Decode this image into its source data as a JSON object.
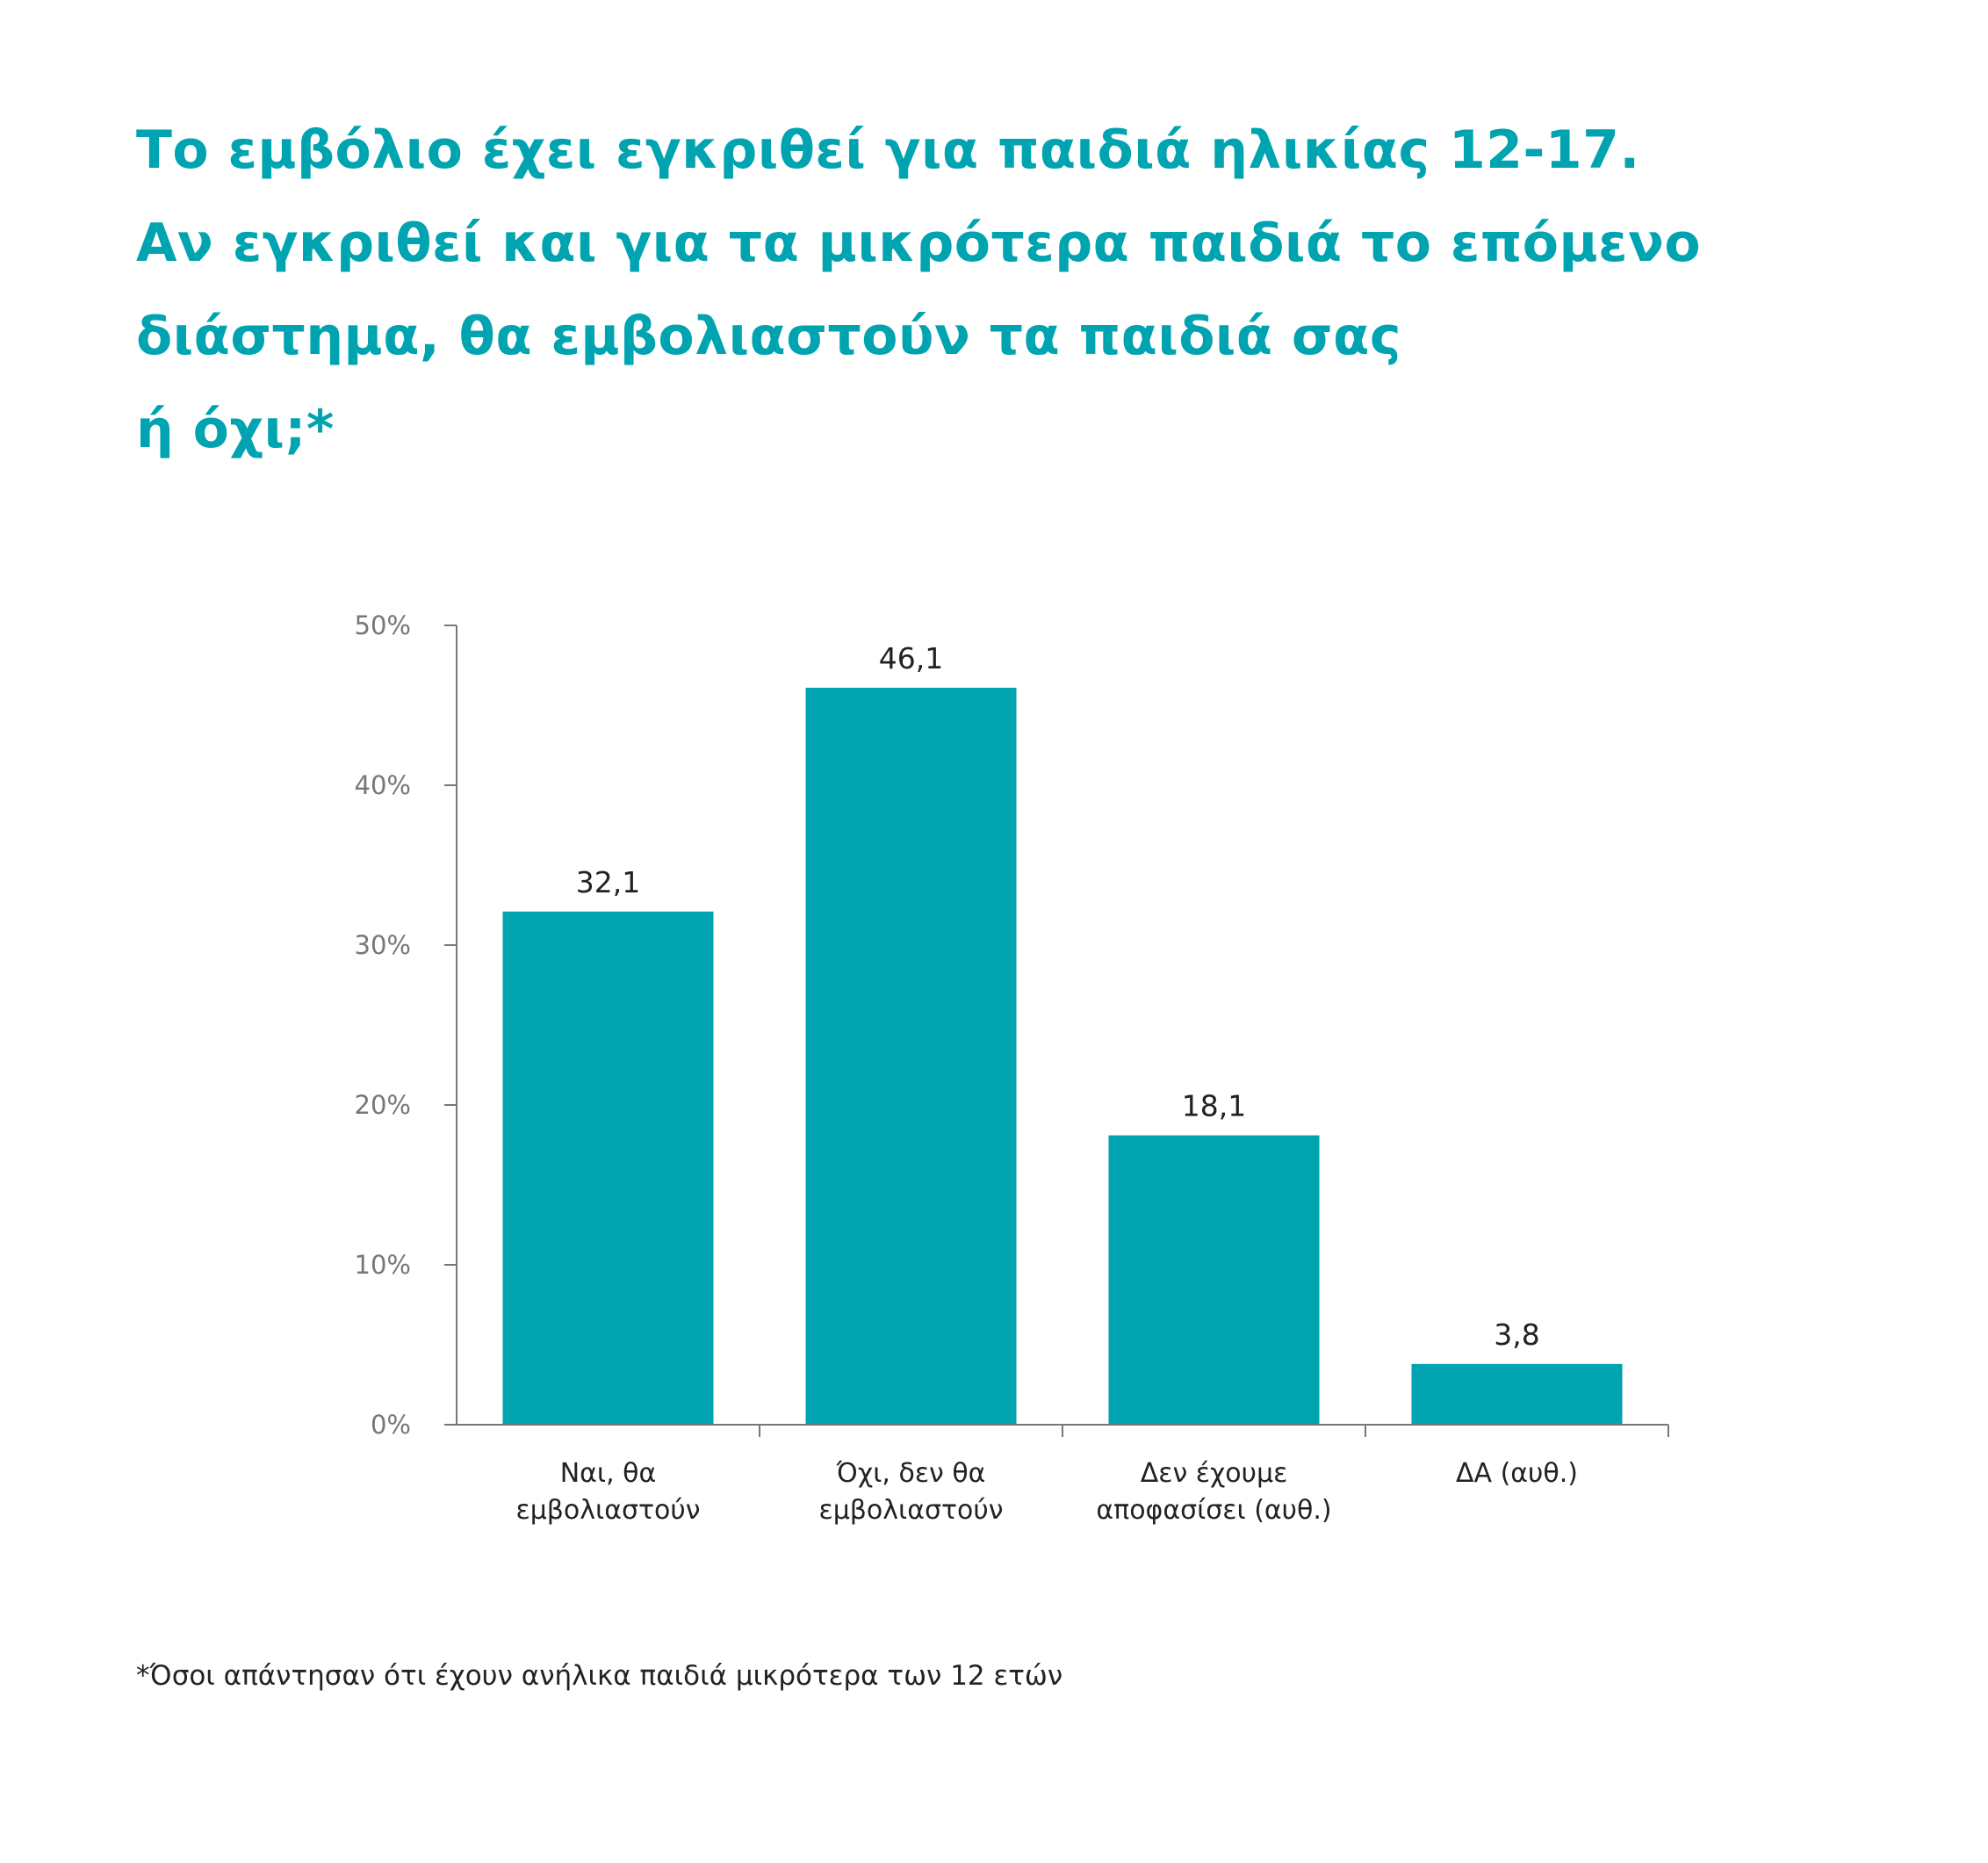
{
  "title_lines": [
    "Το εμβόλιο έχει εγκριθεί για παιδιά ηλικίας 12-17.",
    "Αν εγκριθεί και για τα μικρότερα παιδιά το επόμενο",
    "διάστημα, θα εμβολιαστούν τα παιδιά σας",
    "ή όχι;*"
  ],
  "footnote": "*Όσοι απάντησαν ότι έχουν ανήλικα παιδιά μικρότερα των 12 ετών",
  "colors": {
    "accent": "#00a3b0",
    "bar": "#00a3b0",
    "axis": "#777777",
    "text": "#222222"
  },
  "chart_data": {
    "type": "bar",
    "title": "Το εμβόλιο έχει εγκριθεί για παιδιά ηλικίας 12-17. Αν εγκριθεί και για τα μικρότερα παιδιά το επόμενο διάστημα, θα εμβολιαστούν τα παιδιά σας ή όχι;*",
    "categories": [
      [
        "Ναι, θα",
        "εμβολιαστούν"
      ],
      [
        "Όχι, δεν θα",
        "εμβολιαστούν"
      ],
      [
        "Δεν έχουμε",
        "αποφασίσει (αυθ.)"
      ],
      [
        "ΔΑ (αυθ.)"
      ]
    ],
    "values": [
      32.1,
      46.1,
      18.1,
      3.8
    ],
    "data_labels": [
      "32,1",
      "46,1",
      "18,1",
      "3,8"
    ],
    "ylim": [
      0,
      50
    ],
    "yticks": [
      0,
      10,
      20,
      30,
      40,
      50
    ],
    "ytick_labels": [
      "0%",
      "10%",
      "20%",
      "30%",
      "40%",
      "50%"
    ],
    "xlabel": "",
    "ylabel": "",
    "grid": false,
    "legend": "none"
  }
}
